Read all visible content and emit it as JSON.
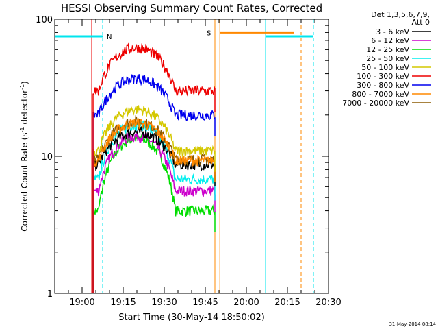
{
  "chart_data": {
    "type": "line",
    "title": "HESSI Observing Summary Count Rates, Corrected",
    "xlabel": "Start Time (30-May-14 18:50:02)",
    "ylabel_main": "Corrected Count Rate (s",
    "ylabel_sup": "-1",
    "ylabel_mid": " detector",
    "ylabel_end": ")",
    "timestamp": "31-May-2014 08:14",
    "yscale": "log",
    "ylim": [
      1,
      100
    ],
    "xlim_minutes_after_1850": [
      0,
      100
    ],
    "x_ticks": [
      {
        "min": 10,
        "label": "19:00"
      },
      {
        "min": 25,
        "label": "19:15"
      },
      {
        "min": 40,
        "label": "19:30"
      },
      {
        "min": 55,
        "label": "19:45"
      },
      {
        "min": 70,
        "label": "20:00"
      },
      {
        "min": 85,
        "label": "20:15"
      },
      {
        "min": 100,
        "label": "20:30"
      }
    ],
    "y_ticks": [
      {
        "v": 1,
        "label": "1"
      },
      {
        "v": 10,
        "label": "10"
      },
      {
        "v": 100,
        "label": "100"
      }
    ],
    "legend_header": [
      "Det 1,3,5,6,7,9,",
      "Att 0"
    ],
    "legend_position": "right",
    "series": [
      {
        "name": "3 - 6 keV",
        "color": "#000000",
        "base": 8.7,
        "peak": 15.0
      },
      {
        "name": "6 - 12 keV",
        "color": "#cc00cc",
        "base": 5.6,
        "peak": 14.0
      },
      {
        "name": "12 - 25 keV",
        "color": "#00dd00",
        "base": 4.0,
        "peak": 13.5
      },
      {
        "name": "25 - 50 keV",
        "color": "#00eeee",
        "base": 6.8,
        "peak": 17.0
      },
      {
        "name": "50 - 100 keV",
        "color": "#d4c800",
        "base": 11.0,
        "peak": 22.0
      },
      {
        "name": "100 - 300 keV",
        "color": "#ee0000",
        "base": 30.0,
        "peak": 62.0
      },
      {
        "name": "300 - 800 keV",
        "color": "#0000ee",
        "base": 20.0,
        "peak": 37.0
      },
      {
        "name": "800 - 7000 keV",
        "color": "#ff8800",
        "base": 9.3,
        "peak": 17.5
      },
      {
        "name": "7000 - 20000 keV",
        "color": "#8b5a00",
        "base": 9.5,
        "peak": 18.0
      }
    ],
    "data_window_minutes": [
      14.0,
      58.5
    ],
    "flags": [
      {
        "label": "N",
        "color": "#00e5ee",
        "value": 75,
        "start": 0,
        "end": 17.5,
        "label_at": 19.0
      },
      {
        "label": "S",
        "color": "#ff8800",
        "value": 80,
        "start": 60.3,
        "end": 87.3,
        "label_at": 58.5
      },
      {
        "label": "",
        "color": "#00e5ee",
        "value": 75,
        "start": 77.0,
        "end": 94.5,
        "label_at": 0
      }
    ],
    "markers": [
      {
        "min": 0,
        "color": "#00e5ee",
        "style": "solid"
      },
      {
        "min": 17.5,
        "color": "#00e5ee",
        "style": "dashed"
      },
      {
        "min": 77.0,
        "color": "#00e5ee",
        "style": "solid"
      },
      {
        "min": 94.5,
        "color": "#00e5ee",
        "style": "dashed"
      },
      {
        "min": 58.5,
        "color": "#ff8800",
        "style": "solid"
      },
      {
        "min": 60.3,
        "color": "#ff8800",
        "style": "solid"
      },
      {
        "min": 90.0,
        "color": "#ff8800",
        "style": "dashed"
      },
      {
        "min": 13.5,
        "color": "#ee0000",
        "style": "solid"
      }
    ]
  }
}
